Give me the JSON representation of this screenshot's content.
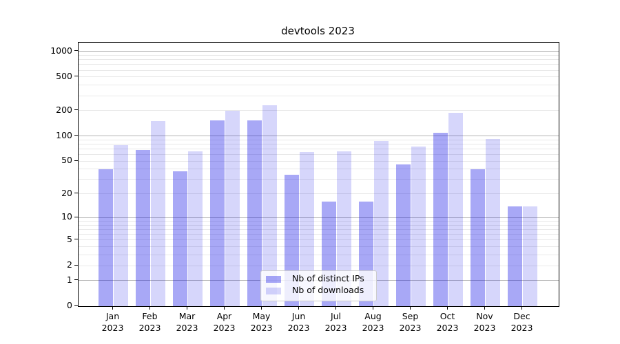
{
  "chart_data": {
    "type": "bar",
    "title": "devtools 2023",
    "categories": [
      "Jan 2023",
      "Feb 2023",
      "Mar 2023",
      "Apr 2023",
      "May 2023",
      "Jun 2023",
      "Jul 2023",
      "Aug 2023",
      "Sep 2023",
      "Oct 2023",
      "Nov 2023",
      "Dec 2023"
    ],
    "series": [
      {
        "name": "Nb of distinct IPs",
        "color": "rgba(0,0,230,0.34)",
        "values": [
          40,
          68,
          38,
          153,
          152,
          34,
          16,
          16,
          46,
          110,
          40,
          14
        ]
      },
      {
        "name": "Nb of downloads",
        "color": "rgba(0,0,230,0.16)",
        "values": [
          78,
          150,
          65,
          200,
          230,
          64,
          66,
          87,
          75,
          190,
          92,
          14
        ]
      }
    ],
    "y_axis": {
      "scale": "log1p",
      "tick_labels": [
        0,
        1,
        2,
        5,
        10,
        20,
        50,
        100,
        200,
        500,
        1000
      ],
      "major_gridlines": [
        1,
        10,
        100,
        1000
      ],
      "minor_gridlines": [
        2,
        3,
        4,
        5,
        6,
        7,
        8,
        9,
        20,
        30,
        40,
        50,
        60,
        70,
        80,
        90,
        200,
        300,
        400,
        500,
        600,
        700,
        800,
        900
      ],
      "range": [
        0,
        1276
      ]
    },
    "x_axis": {
      "label_lines": 2
    },
    "legend": {
      "position": "lower center"
    },
    "grid": true,
    "colors": {
      "bar_dark_flat": "#a8a8f8",
      "bar_light_flat": "#d9d9f9",
      "major_grid": "#b3b3b3",
      "minor_grid": "#e8e8e8",
      "axis": "#000000"
    }
  }
}
